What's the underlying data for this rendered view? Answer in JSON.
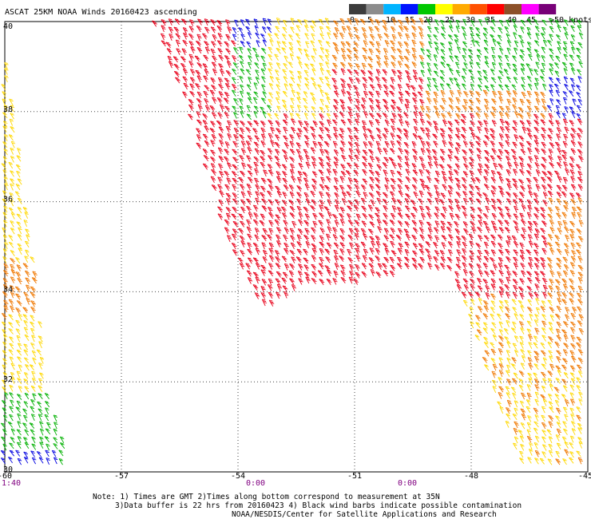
{
  "title": "ASCAT 25KM NOAA Winds 20160423 ascending",
  "legend": {
    "labels": [
      "0",
      "5",
      "10",
      "15",
      "20",
      "25",
      "30",
      "35",
      "40",
      "45",
      ">50 knots"
    ],
    "colors": [
      "#3c3c3c",
      "#8c8c8c",
      "#00b4ff",
      "#0014ff",
      "#00c800",
      "#ffff00",
      "#ffaa00",
      "#ff5000",
      "#ff0000",
      "#8c5028",
      "#ff00ff",
      "#780078"
    ]
  },
  "map": {
    "lon_range": [
      -60,
      -45
    ],
    "lat_range": [
      30,
      40
    ],
    "lon_ticks": [
      "-60",
      "-57",
      "-54",
      "-51",
      "-48",
      "-45"
    ],
    "lat_ticks": [
      "40",
      "38",
      "36",
      "34",
      "32",
      "30"
    ],
    "grid": true
  },
  "times": [
    "1:40",
    "0:00",
    "0:00"
  ],
  "notes": [
    "Note: 1) Times are GMT 2)Times along bottom correspond to measurement at 35N",
    "3)Data buffer is 22 hrs from 20160423 4) Black wind barbs indicate possible contamination",
    "NOAA/NESDIS/Center for Satellite Applications and Research"
  ],
  "barb_colors": {
    "red": "#e8001a",
    "orange": "#f07800",
    "yellow": "#ffd800",
    "green": "#00b000",
    "blue": "#0000e0"
  }
}
